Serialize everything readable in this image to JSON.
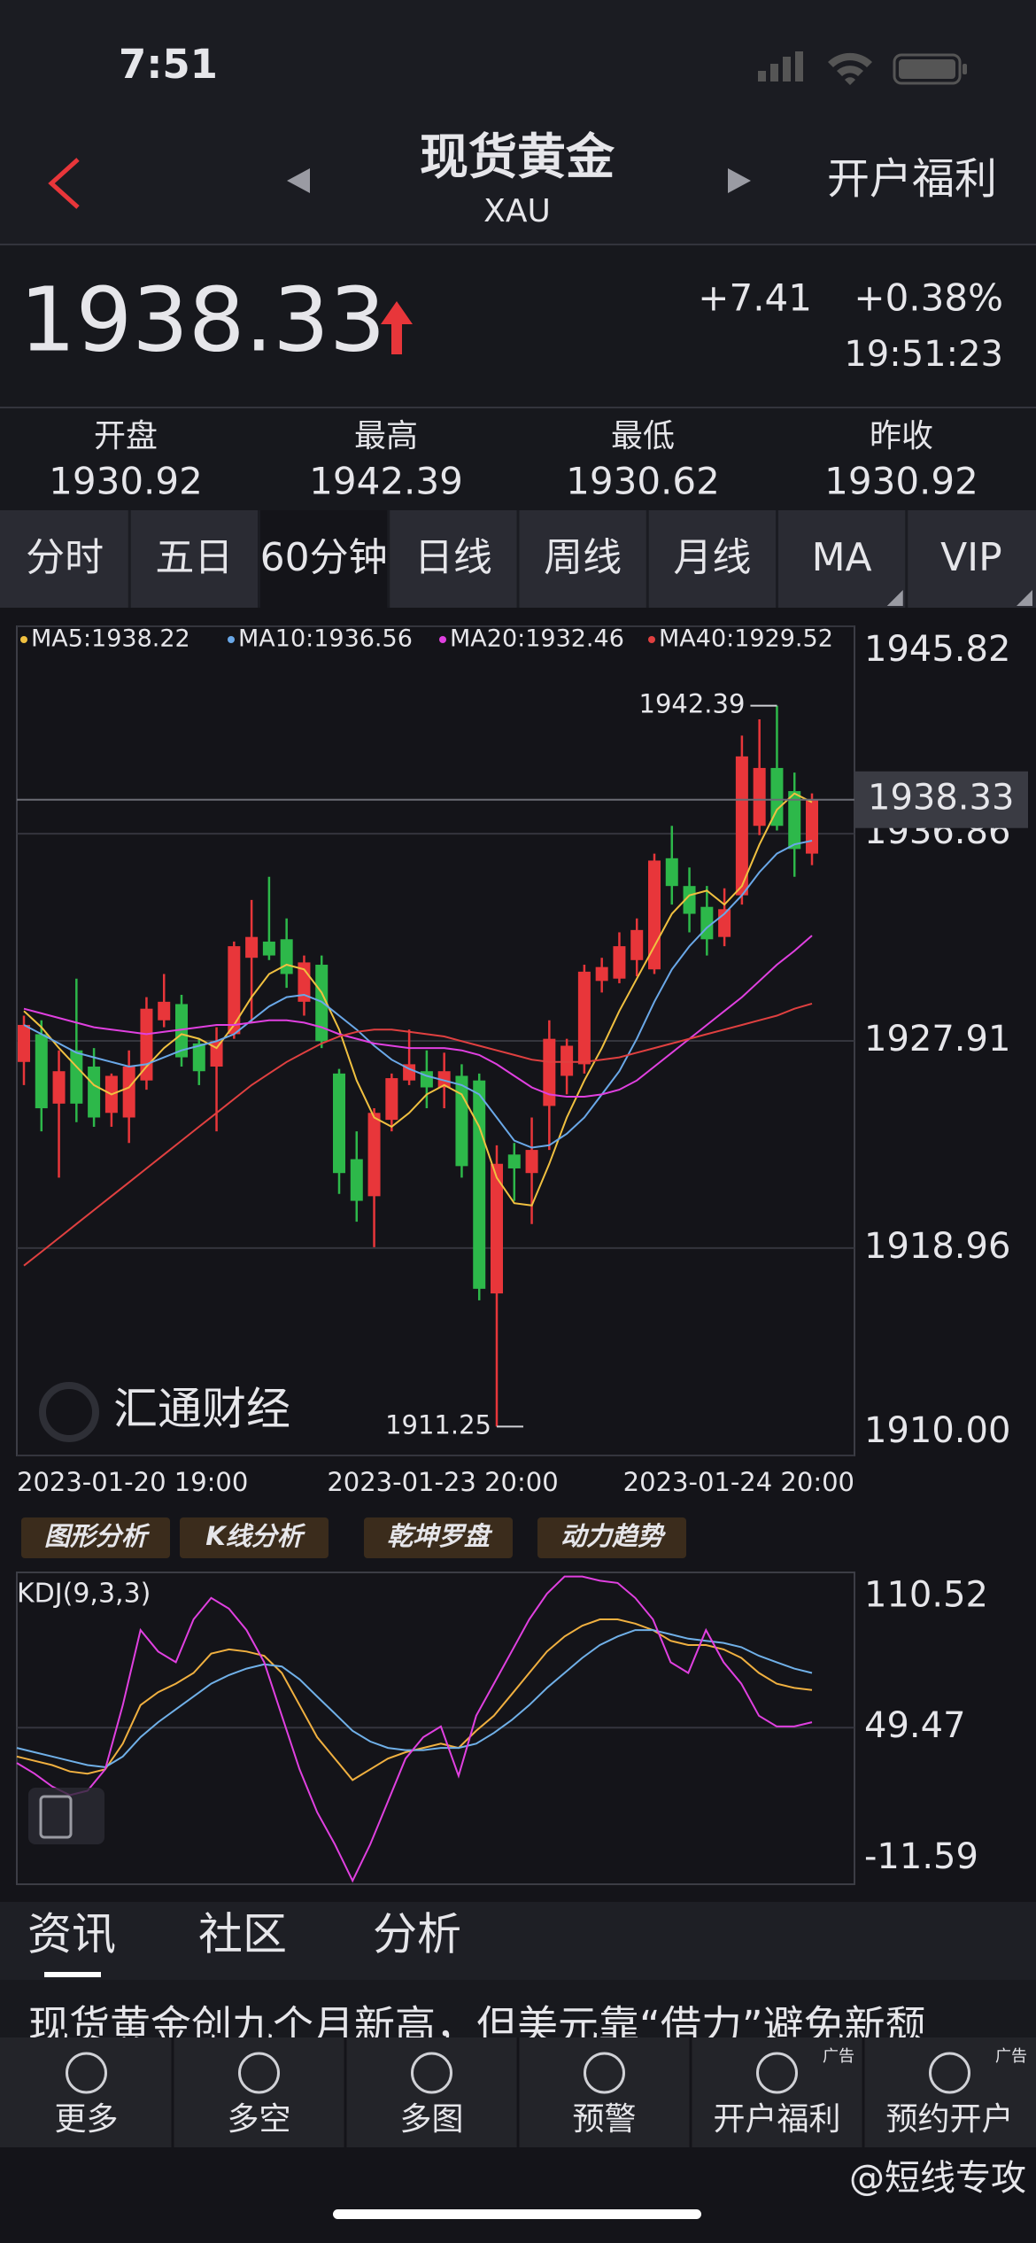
{
  "status_bar": {
    "time": "7:51"
  },
  "header": {
    "title": "现货黄金",
    "subtitle": "XAU",
    "action": "开户福利"
  },
  "quote": {
    "price": "1938.33",
    "change": "+7.41",
    "change_pct": "+0.38%",
    "time": "19:51:23"
  },
  "stats": [
    {
      "label": "开盘",
      "value": "1930.92"
    },
    {
      "label": "最高",
      "value": "1942.39"
    },
    {
      "label": "最低",
      "value": "1930.62"
    },
    {
      "label": "昨收",
      "value": "1930.92"
    }
  ],
  "period_tabs": [
    "分时",
    "五日",
    "60分钟",
    "日线",
    "周线",
    "月线",
    "MA",
    "VIP"
  ],
  "chart_data": [
    {
      "type": "candlestick",
      "up_color": "#e8363a",
      "down_color": "#2db84a",
      "open": [
        1927.0,
        1928.2,
        1925.2,
        1927.5,
        1926.8,
        1924.8,
        1924.6,
        1926.2,
        1928.8,
        1929.5,
        1927.8,
        1926.8,
        1928.2,
        1931.5,
        1932.2,
        1932.3,
        1929.6,
        1931.2,
        1926.5,
        1922.8,
        1921.2,
        1924.5,
        1926.2,
        1926.6,
        1925.9,
        1926.4,
        1926.2,
        1917.0,
        1923.0,
        1922.2,
        1925.1,
        1926.4,
        1926.9,
        1930.5,
        1930.6,
        1931.4,
        1931.0,
        1935.8,
        1934.6,
        1933.7,
        1932.4,
        1934.2,
        1937.2,
        1939.7,
        1938.7,
        1936.0
      ],
      "high": [
        1929.0,
        1928.8,
        1927.5,
        1930.6,
        1927.6,
        1926.5,
        1927.5,
        1929.8,
        1930.8,
        1929.9,
        1928.0,
        1928.5,
        1932.2,
        1934.0,
        1935.0,
        1933.2,
        1931.6,
        1931.6,
        1926.7,
        1924.0,
        1925.0,
        1926.5,
        1928.4,
        1927.5,
        1927.4,
        1926.9,
        1926.5,
        1923.4,
        1923.5,
        1924.6,
        1928.8,
        1928.0,
        1931.2,
        1931.5,
        1932.6,
        1933.2,
        1936.0,
        1937.2,
        1935.4,
        1934.6,
        1934.5,
        1941.1,
        1941.8,
        1942.39,
        1939.5,
        1938.6
      ],
      "low": [
        1926.0,
        1924.0,
        1922.0,
        1924.4,
        1924.2,
        1924.2,
        1923.5,
        1925.8,
        1928.5,
        1926.8,
        1926.0,
        1924.0,
        1928.0,
        1928.7,
        1931.4,
        1930.2,
        1929.0,
        1927.6,
        1921.3,
        1920.1,
        1919.0,
        1924.0,
        1926.0,
        1925.0,
        1925.0,
        1922.0,
        1916.7,
        1911.25,
        1921.0,
        1920.0,
        1923.2,
        1925.6,
        1926.5,
        1930.0,
        1930.4,
        1930.7,
        1930.8,
        1933.8,
        1932.6,
        1931.6,
        1932.0,
        1933.8,
        1936.8,
        1937.0,
        1935.0,
        1935.5
      ],
      "close": [
        1928.6,
        1925.0,
        1926.6,
        1925.2,
        1924.6,
        1926.4,
        1926.8,
        1929.3,
        1929.6,
        1927.2,
        1926.6,
        1927.9,
        1932.0,
        1932.4,
        1931.6,
        1930.8,
        1931.3,
        1927.9,
        1922.2,
        1921.0,
        1924.8,
        1926.3,
        1926.9,
        1925.9,
        1926.6,
        1922.5,
        1917.2,
        1922.6,
        1922.4,
        1923.2,
        1928.0,
        1927.7,
        1930.9,
        1931.1,
        1932.0,
        1932.7,
        1935.7,
        1934.6,
        1933.4,
        1932.3,
        1933.6,
        1940.2,
        1939.7,
        1937.2,
        1936.2,
        1938.33
      ],
      "series": [
        {
          "name": "MA5:1938.22",
          "color": "#f0c040",
          "values": [
            1929.2,
            1928.5,
            1927.6,
            1926.8,
            1926.0,
            1925.6,
            1925.9,
            1926.8,
            1927.6,
            1928.2,
            1928.0,
            1927.6,
            1928.6,
            1929.8,
            1930.8,
            1931.2,
            1931.0,
            1930.0,
            1928.4,
            1926.2,
            1924.6,
            1924.2,
            1924.8,
            1925.6,
            1926.0,
            1925.6,
            1924.2,
            1922.0,
            1920.9,
            1920.8,
            1922.6,
            1924.6,
            1926.2,
            1927.6,
            1929.2,
            1930.6,
            1932.0,
            1933.4,
            1934.2,
            1934.4,
            1933.8,
            1934.6,
            1936.4,
            1937.9,
            1938.6,
            1938.22
          ]
        },
        {
          "name": "MA10:1936.56",
          "color": "#6aa8e8",
          "values": [
            1928.6,
            1928.2,
            1927.8,
            1927.4,
            1927.2,
            1927.0,
            1926.8,
            1926.9,
            1927.2,
            1927.5,
            1927.7,
            1927.9,
            1928.2,
            1928.8,
            1929.4,
            1929.8,
            1929.9,
            1929.6,
            1929.0,
            1928.4,
            1927.7,
            1927.1,
            1926.7,
            1926.4,
            1926.2,
            1926.0,
            1925.6,
            1924.6,
            1923.6,
            1923.3,
            1923.4,
            1923.9,
            1924.6,
            1925.6,
            1926.6,
            1928.0,
            1929.6,
            1931.0,
            1932.0,
            1932.8,
            1933.4,
            1934.2,
            1935.2,
            1936.0,
            1936.4,
            1936.56
          ]
        },
        {
          "name": "MA20:1932.46",
          "color": "#e040e0",
          "values": [
            1929.3,
            1929.1,
            1928.9,
            1928.7,
            1928.5,
            1928.4,
            1928.3,
            1928.2,
            1928.3,
            1928.4,
            1928.5,
            1928.6,
            1928.6,
            1928.7,
            1928.8,
            1928.8,
            1928.7,
            1928.5,
            1928.2,
            1928.0,
            1927.8,
            1927.7,
            1927.6,
            1927.6,
            1927.6,
            1927.5,
            1927.3,
            1926.9,
            1926.4,
            1925.9,
            1925.6,
            1925.5,
            1925.5,
            1925.6,
            1925.8,
            1926.2,
            1926.8,
            1927.4,
            1928.0,
            1928.6,
            1929.2,
            1929.8,
            1930.5,
            1931.2,
            1931.8,
            1932.46
          ]
        },
        {
          "name": "MA40:1929.52",
          "color": "#e04040",
          "values": [
            1918.2,
            1918.8,
            1919.4,
            1920.0,
            1920.6,
            1921.2,
            1921.8,
            1922.4,
            1923.0,
            1923.6,
            1924.2,
            1924.8,
            1925.4,
            1926.0,
            1926.5,
            1927.0,
            1927.4,
            1927.8,
            1928.1,
            1928.3,
            1928.4,
            1928.4,
            1928.3,
            1928.2,
            1928.1,
            1927.9,
            1927.7,
            1927.5,
            1927.3,
            1927.1,
            1927.0,
            1927.0,
            1927.0,
            1927.1,
            1927.2,
            1927.4,
            1927.6,
            1927.8,
            1928.0,
            1928.2,
            1928.4,
            1928.6,
            1928.8,
            1929.0,
            1929.3,
            1929.52
          ]
        }
      ],
      "ylim": [
        1910.0,
        1945.82
      ],
      "yticks": [
        {
          "value": 1945.82,
          "label": "1945.82"
        },
        {
          "value": 1936.86,
          "label": "1936.86"
        },
        {
          "value": 1927.91,
          "label": "1927.91"
        },
        {
          "value": 1918.96,
          "label": "1918.96"
        },
        {
          "value": 1910.0,
          "label": "1910.00"
        }
      ],
      "last_price": {
        "value": 1938.33,
        "label": "1938.33"
      },
      "high_marker": {
        "value": 1942.39,
        "label": "1942.39"
      },
      "low_marker": {
        "value": 1911.25,
        "label": "1911.25"
      },
      "x_labels": [
        "2023-01-20 19:00",
        "2023-01-23 20:00",
        "2023-01-24 20:00"
      ],
      "watermark": "汇通财经"
    },
    {
      "type": "line",
      "title": "KDJ(9,3,3)",
      "series": [
        {
          "color": "#f0b040",
          "values": [
            36,
            34,
            32,
            29,
            28,
            30,
            42,
            60,
            66,
            70,
            75,
            84,
            86,
            85,
            83,
            75,
            60,
            45,
            35,
            25,
            30,
            35,
            38,
            40,
            42,
            40,
            48,
            55,
            65,
            75,
            85,
            92,
            97,
            100,
            100,
            98,
            95,
            90,
            88,
            88,
            86,
            82,
            75,
            70,
            68,
            67
          ]
        },
        {
          "color": "#70b0e8",
          "values": [
            40,
            38,
            36,
            34,
            32,
            31,
            36,
            45,
            52,
            58,
            64,
            70,
            74,
            77,
            79,
            78,
            72,
            64,
            56,
            48,
            43,
            40,
            39,
            39,
            40,
            40,
            42,
            47,
            53,
            60,
            68,
            75,
            82,
            88,
            92,
            95,
            95,
            93,
            91,
            90,
            89,
            87,
            83,
            80,
            77,
            75
          ]
        },
        {
          "color": "#e040e0",
          "values": [
            33,
            28,
            22,
            18,
            20,
            30,
            60,
            95,
            85,
            80,
            100,
            110,
            105,
            95,
            80,
            55,
            30,
            10,
            -5,
            -22,
            -5,
            15,
            35,
            45,
            50,
            27,
            55,
            70,
            85,
            100,
            112,
            120,
            120,
            118,
            117,
            110,
            100,
            80,
            75,
            95,
            80,
            70,
            55,
            50,
            50,
            52
          ]
        }
      ],
      "ylim": [
        -23.6,
        121.9
      ],
      "yticks": [
        110.52,
        49.47,
        -11.59
      ]
    }
  ],
  "tools": [
    "图形分析",
    "K线分析",
    "乾坤罗盘",
    "动力趋势"
  ],
  "content_tabs": [
    "资讯",
    "社区",
    "分析"
  ],
  "news": [
    "现货黄金创九个月新高，但美元靠“借力”避免新颓"
  ],
  "nav": [
    {
      "label": "更多"
    },
    {
      "label": "多空"
    },
    {
      "label": "多图"
    },
    {
      "label": "预警"
    },
    {
      "label": "开户福利",
      "tag": "广告"
    },
    {
      "label": "预约开户",
      "tag": "广告"
    }
  ],
  "watermark": "@短线专攻"
}
